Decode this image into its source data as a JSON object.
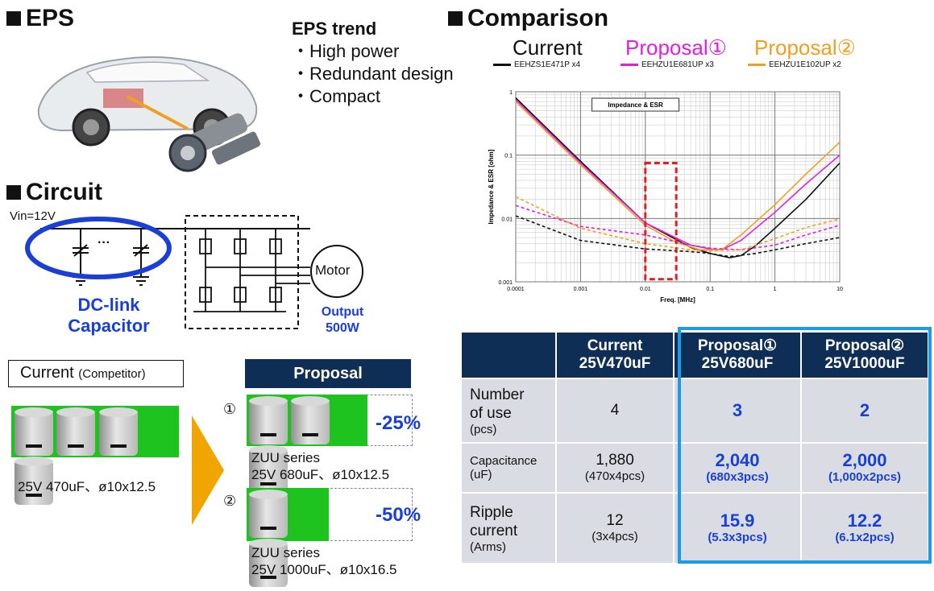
{
  "eps": {
    "heading": "EPS"
  },
  "trend": {
    "title": "EPS trend",
    "items": [
      "・High power",
      "・Redundant design",
      "・Compact"
    ]
  },
  "circuit": {
    "heading": "Circuit",
    "vin": "Vin=12V",
    "dots": "···",
    "capacitor_label": [
      "DC-link",
      "Capacitor"
    ],
    "motor": "Motor",
    "output": [
      "Output",
      "500W"
    ]
  },
  "comparison": {
    "heading": "Comparison",
    "legend": [
      {
        "title": "Current",
        "part": "EEHZS1E471P x4",
        "color": "#111111"
      },
      {
        "title": "Proposal①",
        "part": "EEHZU1E681UP x3",
        "color": "#e020e0"
      },
      {
        "title": "Proposal②",
        "part": "EEHZU1E102UP x2",
        "color": "#f0a020"
      }
    ]
  },
  "chart_data": {
    "type": "line",
    "title": "Impedance & ESR",
    "xlabel": "Freq. [MHz]",
    "ylabel": "Impedance & ESR [ohm]",
    "xscale": "log",
    "yscale": "log",
    "xlim": [
      0.0001,
      10
    ],
    "ylim": [
      0.001,
      1
    ],
    "xticks": [
      "0.0001",
      "0.001",
      "0.01",
      "0.1",
      "1",
      "10"
    ],
    "yticks": [
      "1",
      "0.1",
      "0.01",
      "0.001"
    ],
    "grid": true,
    "series": [
      {
        "name": "Current",
        "kind": "impedance",
        "color": "#111111",
        "dash": false,
        "x": [
          0.0001,
          0.001,
          0.01,
          0.05,
          0.1,
          0.2,
          0.3,
          0.5,
          1,
          3,
          10
        ],
        "y": [
          0.8,
          0.08,
          0.0085,
          0.0035,
          0.0028,
          0.0024,
          0.0026,
          0.0037,
          0.007,
          0.02,
          0.075
        ]
      },
      {
        "name": "Proposal①",
        "kind": "impedance",
        "color": "#e020e0",
        "dash": false,
        "x": [
          0.0001,
          0.001,
          0.01,
          0.05,
          0.1,
          0.15,
          0.3,
          1,
          3,
          10
        ],
        "y": [
          0.75,
          0.075,
          0.0085,
          0.0038,
          0.0033,
          0.0032,
          0.0045,
          0.0125,
          0.035,
          0.1
        ]
      },
      {
        "name": "Proposal②",
        "kind": "impedance",
        "color": "#f0a020",
        "dash": false,
        "x": [
          0.0001,
          0.001,
          0.01,
          0.03,
          0.07,
          0.15,
          0.3,
          1,
          3,
          10
        ],
        "y": [
          0.7,
          0.07,
          0.0078,
          0.0042,
          0.0032,
          0.0032,
          0.0055,
          0.0165,
          0.05,
          0.16
        ]
      },
      {
        "name": "Current",
        "kind": "ESR",
        "color": "#111111",
        "dash": true,
        "x": [
          0.0001,
          0.001,
          0.01,
          0.05,
          0.1,
          0.2,
          0.5,
          1,
          3,
          10
        ],
        "y": [
          0.011,
          0.0045,
          0.0033,
          0.003,
          0.0028,
          0.0025,
          0.0028,
          0.0032,
          0.004,
          0.005
        ]
      },
      {
        "name": "Proposal①",
        "kind": "ESR",
        "color": "#e020e0",
        "dash": true,
        "x": [
          0.0001,
          0.001,
          0.01,
          0.05,
          0.1,
          0.3,
          1,
          3,
          10
        ],
        "y": [
          0.016,
          0.0075,
          0.0055,
          0.0038,
          0.0034,
          0.0032,
          0.0038,
          0.0055,
          0.0078
        ]
      },
      {
        "name": "Proposal②",
        "kind": "ESR",
        "color": "#f0a020",
        "dash": true,
        "x": [
          0.0001,
          0.001,
          0.01,
          0.05,
          0.1,
          0.3,
          1,
          3,
          10
        ],
        "y": [
          0.022,
          0.007,
          0.004,
          0.0032,
          0.0031,
          0.0032,
          0.0048,
          0.0072,
          0.0098
        ]
      }
    ]
  },
  "competitor": {
    "label": "Current",
    "label_small": "(Competitor)",
    "spec": "25V 470uF、ø10x12.5"
  },
  "proposal": {
    "header": "Proposal",
    "options": [
      {
        "num": "①",
        "reduction": "-25%",
        "series": "ZUU series",
        "spec": "25V 680uF、ø10x12.5"
      },
      {
        "num": "②",
        "reduction": "-50%",
        "series": "ZUU series",
        "spec": "25V 1000uF、ø10x16.5"
      }
    ]
  },
  "table": {
    "headers": [
      {
        "line1": "",
        "line2": ""
      },
      {
        "line1": "Current",
        "line2": "25V470uF"
      },
      {
        "line1": "Proposal①",
        "line2": "25V680uF"
      },
      {
        "line1": "Proposal②",
        "line2": "25V1000uF"
      }
    ],
    "rows": [
      {
        "label": [
          "Number",
          "of use"
        ],
        "unit": "(pcs)",
        "cells": [
          {
            "main": "4",
            "sub": ""
          },
          {
            "main": "3",
            "sub": ""
          },
          {
            "main": "2",
            "sub": ""
          }
        ]
      },
      {
        "label": [
          "Capacitance"
        ],
        "unit": "(uF)",
        "cells": [
          {
            "main": "1,880",
            "sub": "(470x4pcs)"
          },
          {
            "main": "2,040",
            "sub": "(680x3pcs)"
          },
          {
            "main": "2,000",
            "sub": "(1,000x2pcs)"
          }
        ]
      },
      {
        "label": [
          "Ripple",
          "current"
        ],
        "unit": "(Arms)",
        "cells": [
          {
            "main": "12",
            "sub": "(3x4pcs)"
          },
          {
            "main": "15.9",
            "sub": "(5.3x3pcs)"
          },
          {
            "main": "12.2",
            "sub": "(6.1x2pcs)"
          }
        ]
      }
    ],
    "highlight_color": "#1e9be8"
  }
}
